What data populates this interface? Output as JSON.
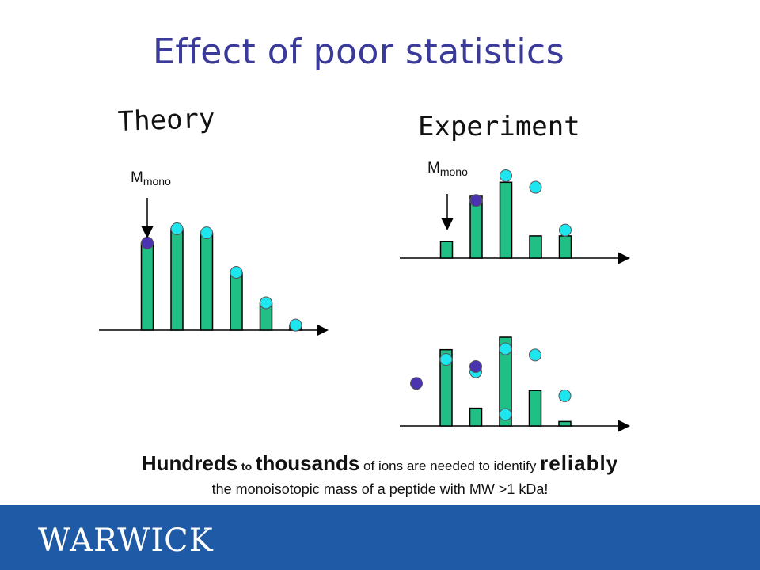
{
  "slide": {
    "title": "Effect of poor statistics",
    "brand_color": "#1f5aa6",
    "title_color": "#3a3a9a",
    "bar_color": "#1fbf86",
    "theoretical_point_color": "#1ee6ee",
    "mono_point_color": "#4b32b0"
  },
  "theory": {
    "heading": "Theory",
    "marker_label_main": "M",
    "marker_label_sub": "mono",
    "bars": [
      0.86,
      1.0,
      0.96,
      0.57,
      0.27,
      0.05
    ],
    "points": [
      0.86,
      1.0,
      0.96,
      0.57,
      0.27,
      0.05
    ]
  },
  "experiment": {
    "heading": "Experiment",
    "marker_label_main": "M",
    "marker_label_sub": "mono",
    "top_plot": {
      "bars": [
        0.2,
        0.76,
        0.92,
        0.27,
        0.27
      ],
      "points": [
        null,
        0.7,
        1.0,
        0.86,
        0.34
      ],
      "mono_point": 1
    },
    "bottom_plot": {
      "bars": [
        0.0,
        0.86,
        0.2,
        1.0,
        0.4,
        0.05
      ],
      "points": [
        null,
        0.75,
        0.61,
        0.87,
        0.8,
        0.34
      ],
      "extra_points": [
        {
          "slot": 3,
          "value": 0.13
        }
      ],
      "mono_point": 2,
      "mono_point_value": 0.67,
      "outlier_point": {
        "slot": 0,
        "value": 0.48
      }
    }
  },
  "caption": {
    "word_hundreds": "Hundreds",
    "word_to": "to",
    "word_thousands": "thousands",
    "text_middle": "of ions are needed to identify",
    "word_reliably": "reliably",
    "line2": "the monoisotopic mass of a peptide with MW >1 kDa!"
  },
  "footer": {
    "logo_text": "WARWICK"
  }
}
